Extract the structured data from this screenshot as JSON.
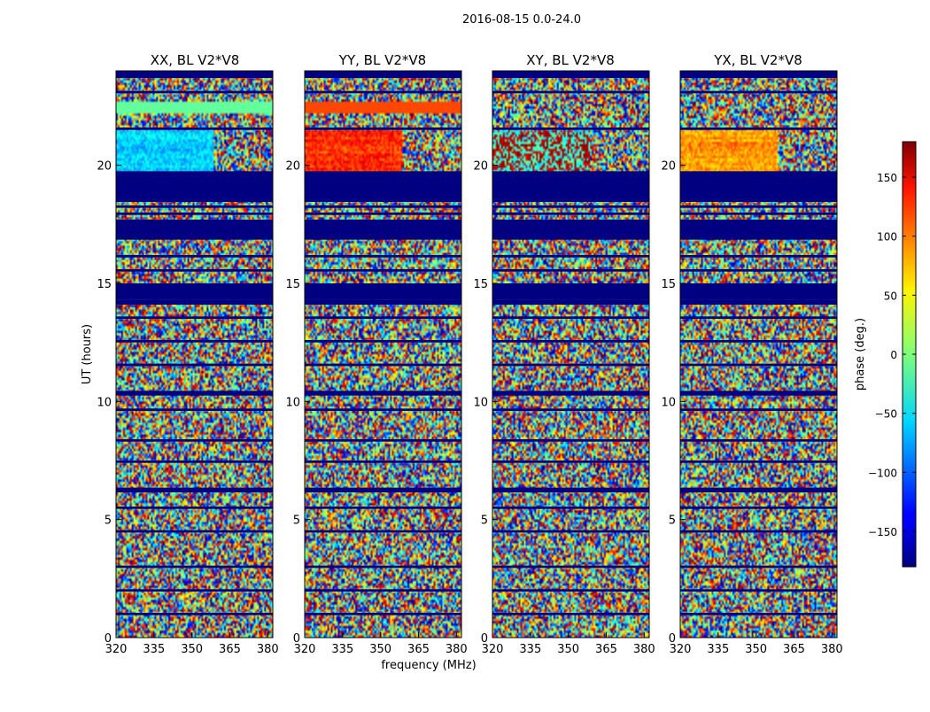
{
  "figure": {
    "suptitle": "2016-08-15 0.0-24.0",
    "xlabel": "frequency (MHz)",
    "ylabel": "UT (hours)",
    "colorbar_label": "phase (deg.)"
  },
  "chart_data": {
    "type": "heatmap",
    "panels": [
      {
        "title": "XX, BL V2*V8",
        "id": "xx"
      },
      {
        "title": "YY, BL V2*V8",
        "id": "yy"
      },
      {
        "title": "XY, BL V2*V8",
        "id": "xy"
      },
      {
        "title": "YX, BL V2*V8",
        "id": "yx"
      }
    ],
    "x_range": [
      320,
      382
    ],
    "y_range": [
      0,
      24
    ],
    "x_ticks": [
      320,
      335,
      350,
      365,
      380
    ],
    "y_ticks": [
      0,
      5,
      10,
      15,
      20
    ],
    "color_range": [
      -180,
      180
    ],
    "colorbar_ticks": [
      -150,
      -100,
      -50,
      0,
      50,
      100,
      150
    ],
    "colormap": "jet",
    "flagged_value": -180,
    "flagged_ut_bands": [
      [
        0.95,
        1.05
      ],
      [
        1.95,
        2.05
      ],
      [
        2.95,
        3.05
      ],
      [
        4.45,
        4.55
      ],
      [
        5.45,
        5.55
      ],
      [
        6.15,
        6.35
      ],
      [
        7.4,
        7.5
      ],
      [
        8.3,
        8.4
      ],
      [
        9.6,
        9.7
      ],
      [
        10.25,
        10.45
      ],
      [
        11.5,
        11.6
      ],
      [
        12.5,
        12.6
      ],
      [
        13.5,
        13.6
      ],
      [
        14.1,
        14.3
      ],
      [
        14.3,
        15.0
      ],
      [
        15.5,
        15.6
      ],
      [
        16.1,
        16.2
      ],
      [
        16.85,
        17.7
      ],
      [
        17.9,
        18.0
      ],
      [
        18.2,
        18.3
      ],
      [
        18.45,
        19.75
      ],
      [
        21.5,
        21.6
      ],
      [
        23.05,
        23.15
      ],
      [
        23.7,
        24.0
      ]
    ]
  }
}
